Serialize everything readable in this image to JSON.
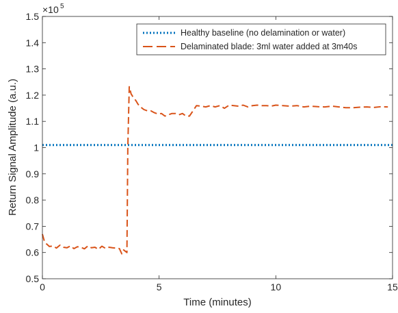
{
  "chart_data": {
    "type": "line",
    "xlabel": "Time (minutes)",
    "ylabel": "Return Signal Amplitude (a.u.)",
    "xlim": [
      0,
      15
    ],
    "ylim": [
      0.5,
      1.5
    ],
    "y_multiplier": {
      "base": "×10",
      "exponent": "5"
    },
    "xticks": [
      0,
      5,
      10,
      15
    ],
    "yticks": [
      0.5,
      0.6,
      0.7,
      0.8,
      0.9,
      1.0,
      1.1,
      1.2,
      1.3,
      1.4,
      1.5
    ],
    "ytick_labels": [
      "0.5",
      "0.6",
      "0.7",
      "0.8",
      "0.9",
      "1",
      "1.1",
      "1.2",
      "1.3",
      "1.4",
      "1.5"
    ],
    "grid": false,
    "legend_position": "top-right",
    "series": [
      {
        "name": "Healthy baseline (no delamination or water)",
        "color": "#0072BD",
        "style": "dotted",
        "x": [
          0,
          15
        ],
        "y": [
          1.01,
          1.01
        ]
      },
      {
        "name": "Delaminated blade: 3ml water added at 3m40s",
        "color": "#D95319",
        "style": "dashed",
        "x": [
          0,
          0.08,
          0.15,
          0.3,
          0.45,
          0.6,
          0.75,
          0.9,
          1.05,
          1.2,
          1.35,
          1.5,
          1.65,
          1.8,
          1.95,
          2.1,
          2.25,
          2.4,
          2.55,
          2.7,
          2.85,
          3.0,
          3.15,
          3.3,
          3.4,
          3.48,
          3.55,
          3.62,
          3.66,
          3.72,
          3.8,
          3.9,
          4.0,
          4.1,
          4.2,
          4.35,
          4.5,
          4.65,
          4.8,
          4.95,
          5.1,
          5.25,
          5.4,
          5.55,
          5.7,
          5.85,
          6.0,
          6.15,
          6.3,
          6.45,
          6.6,
          6.8,
          7.0,
          7.2,
          7.4,
          7.6,
          7.8,
          8.0,
          8.2,
          8.4,
          8.6,
          8.8,
          9.0,
          9.2,
          9.4,
          9.6,
          9.8,
          10.0,
          10.3,
          10.6,
          10.9,
          11.2,
          11.5,
          11.8,
          12.1,
          12.4,
          12.7,
          13.0,
          13.3,
          13.6,
          13.9,
          14.2,
          14.5,
          14.8
        ],
        "y": [
          0.67,
          0.645,
          0.635,
          0.623,
          0.625,
          0.617,
          0.628,
          0.62,
          0.618,
          0.625,
          0.615,
          0.622,
          0.62,
          0.614,
          0.625,
          0.618,
          0.62,
          0.612,
          0.624,
          0.616,
          0.62,
          0.618,
          0.617,
          0.615,
          0.595,
          0.61,
          0.605,
          0.6,
          1.0,
          1.232,
          1.205,
          1.19,
          1.18,
          1.165,
          1.155,
          1.145,
          1.14,
          1.14,
          1.133,
          1.128,
          1.13,
          1.12,
          1.125,
          1.13,
          1.13,
          1.125,
          1.13,
          1.12,
          1.12,
          1.14,
          1.16,
          1.158,
          1.155,
          1.16,
          1.155,
          1.16,
          1.15,
          1.162,
          1.16,
          1.158,
          1.162,
          1.155,
          1.16,
          1.162,
          1.16,
          1.16,
          1.158,
          1.162,
          1.16,
          1.158,
          1.16,
          1.155,
          1.158,
          1.156,
          1.155,
          1.158,
          1.155,
          1.152,
          1.152,
          1.154,
          1.155,
          1.153,
          1.156,
          1.155
        ]
      }
    ]
  }
}
